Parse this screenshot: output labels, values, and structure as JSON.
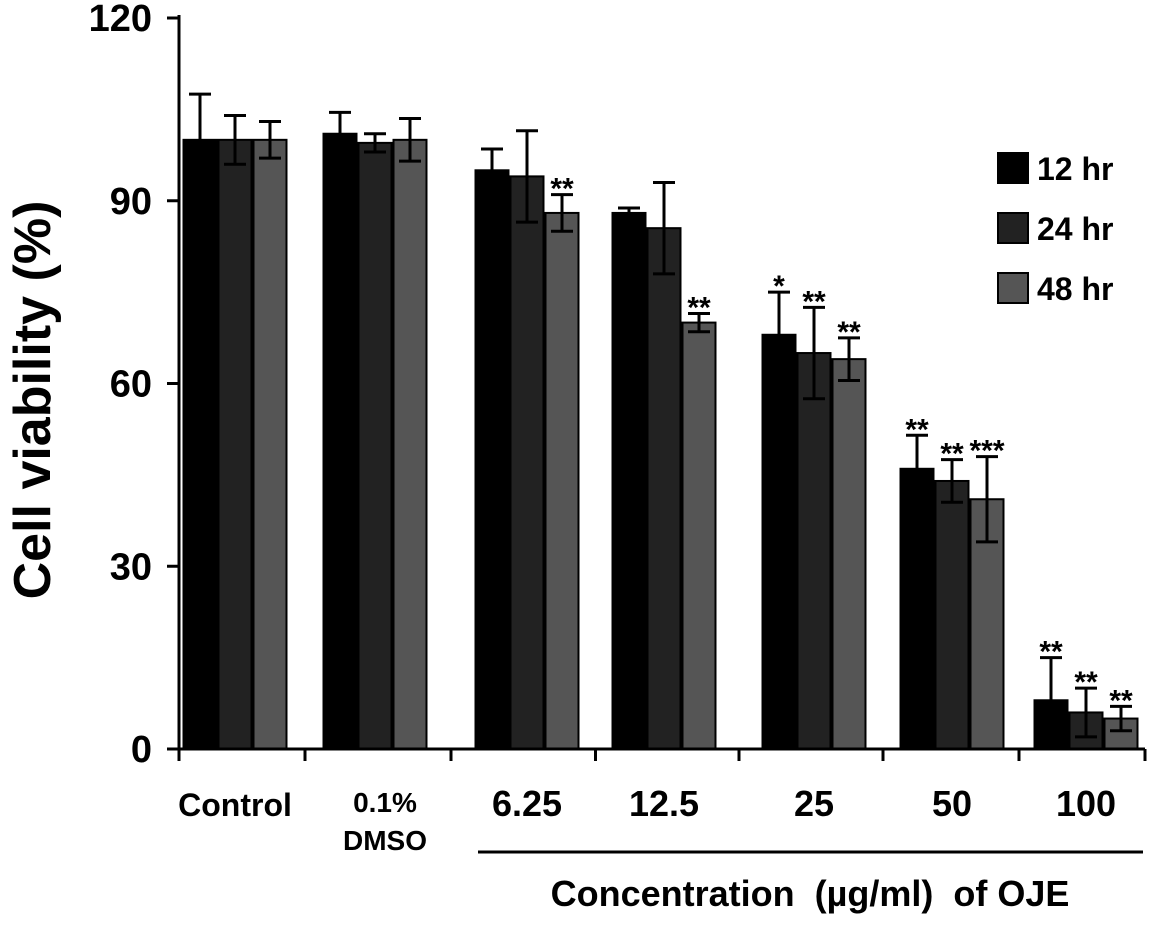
{
  "chart_data": {
    "type": "bar",
    "title": "",
    "ylabel": "Cell viability (%)",
    "xlabel": "Concentration  (µg/ml)  of OJE",
    "ylim": [
      0,
      120
    ],
    "yticks": [
      "0",
      "30",
      "60",
      "90",
      "120"
    ],
    "ytick_values": [
      0,
      30,
      60,
      90,
      120
    ],
    "categories": [
      [
        "Control"
      ],
      [
        "0.1%",
        "DMSO"
      ],
      [
        "6.25"
      ],
      [
        "12.5"
      ],
      [
        "25"
      ],
      [
        "50"
      ],
      [
        "100"
      ]
    ],
    "legend_position": "top-right",
    "grid": false,
    "series": [
      {
        "name": "12 hr",
        "color": "#000000",
        "values": [
          100,
          101,
          95,
          88,
          68,
          46,
          8
        ],
        "errors": [
          7.5,
          3.5,
          3.5,
          0.8,
          7,
          5.5,
          7
        ],
        "annotations": [
          "",
          "",
          "",
          "",
          "*",
          "**",
          "**"
        ]
      },
      {
        "name": "24 hr",
        "color": "#222222",
        "values": [
          100,
          99.5,
          94,
          85.5,
          65,
          44,
          6
        ],
        "errors": [
          4,
          1.5,
          7.5,
          7.5,
          7.5,
          3.5,
          4
        ],
        "annotations": [
          "",
          "",
          "",
          "",
          "**",
          "**",
          "**"
        ]
      },
      {
        "name": "48 hr",
        "color": "#555555",
        "values": [
          100,
          100,
          88,
          70,
          64,
          41,
          5
        ],
        "errors": [
          3,
          3.5,
          3,
          1.5,
          3.5,
          7,
          2
        ],
        "annotations": [
          "",
          "",
          "**",
          "**",
          "**",
          "***",
          "**"
        ]
      }
    ]
  }
}
